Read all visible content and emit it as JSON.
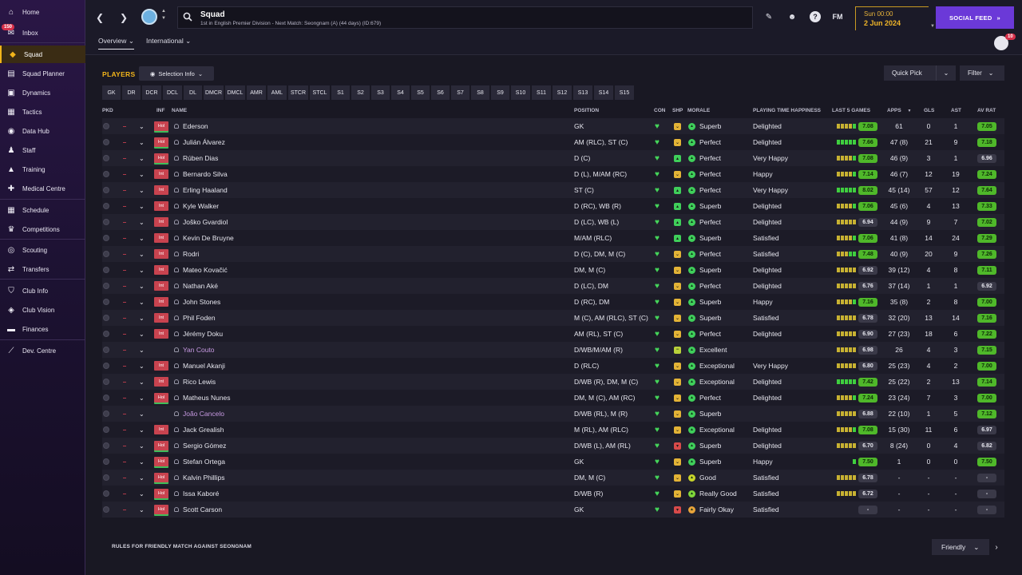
{
  "sidebar": {
    "inbox_badge": "150",
    "items": [
      {
        "label": "Home",
        "icon": "home-icon",
        "glyph": "⌂"
      },
      {
        "label": "Inbox",
        "icon": "mail-icon",
        "glyph": "✉"
      },
      {
        "label": "Squad",
        "icon": "shirt-icon",
        "glyph": "◆",
        "active": true
      },
      {
        "label": "Squad Planner",
        "icon": "planner-icon",
        "glyph": "▤"
      },
      {
        "label": "Dynamics",
        "icon": "dynamics-icon",
        "glyph": "▣"
      },
      {
        "label": "Tactics",
        "icon": "tactics-icon",
        "glyph": "▦"
      },
      {
        "label": "Data Hub",
        "icon": "data-hub-icon",
        "glyph": "◉"
      },
      {
        "label": "Staff",
        "icon": "staff-icon",
        "glyph": "♟"
      },
      {
        "label": "Training",
        "icon": "training-icon",
        "glyph": "▲"
      },
      {
        "label": "Medical Centre",
        "icon": "medical-icon",
        "glyph": "✚"
      },
      {
        "label": "Schedule",
        "icon": "calendar-icon",
        "glyph": "▦"
      },
      {
        "label": "Competitions",
        "icon": "trophy-icon",
        "glyph": "♛"
      },
      {
        "label": "Scouting",
        "icon": "binoculars-icon",
        "glyph": "◎"
      },
      {
        "label": "Transfers",
        "icon": "transfers-icon",
        "glyph": "⇄"
      },
      {
        "label": "Club Info",
        "icon": "shield-icon",
        "glyph": "⛉"
      },
      {
        "label": "Club Vision",
        "icon": "vision-icon",
        "glyph": "◈"
      },
      {
        "label": "Finances",
        "icon": "finances-icon",
        "glyph": "▬"
      },
      {
        "label": "Dev. Centre",
        "icon": "dev-centre-icon",
        "glyph": "⟋"
      }
    ]
  },
  "topbar": {
    "title": "Squad",
    "subtitle": "1st in English Premier Division - Next Match: Seongnam (A) (44 days) (ID:679)",
    "time": "Sun 00:00",
    "date": "2 Jun 2024",
    "social_feed": "SOCIAL FEED",
    "fm_label": "FM",
    "help_label": "?",
    "avatar_badge": "10",
    "tabs": [
      {
        "label": "Overview",
        "active": true
      },
      {
        "label": "International",
        "active": false
      }
    ]
  },
  "panel": {
    "heading": "PLAYERS",
    "selection_info": "Selection Info",
    "quick_pick": "Quick Pick",
    "filter": "Filter",
    "position_filters": [
      "GK",
      "DR",
      "DCR",
      "DCL",
      "DL",
      "DMCR",
      "DMCL",
      "AMR",
      "AML",
      "STCR",
      "STCL",
      "S1",
      "S2",
      "S3",
      "S4",
      "S5",
      "S6",
      "S7",
      "S8",
      "S9",
      "S10",
      "S11",
      "S12",
      "S13",
      "S14",
      "S15"
    ]
  },
  "table": {
    "headers": {
      "pkd": "PKD",
      "inf": "INF",
      "name": "NAME",
      "position": "POSITION",
      "con": "CON",
      "shp": "SHP",
      "morale": "MORALE",
      "happiness": "PLAYING TIME HAPPINESS",
      "last5": "LAST 5 GAMES",
      "apps": "APPS",
      "gls": "GLS",
      "ast": "AST",
      "avrat": "AV RAT"
    },
    "sort_indicator": "▼",
    "rows": [
      {
        "inf": "Hol",
        "name": "Ederson",
        "position": "GK",
        "shp": "ok",
        "morale": "Superb",
        "happiness": "Delighted",
        "form": [
          "y",
          "y",
          "y",
          "y",
          "g"
        ],
        "last5": "7.08",
        "apps": "61",
        "gls": "0",
        "ast": "1",
        "avrat": "7.05"
      },
      {
        "inf": "Hol",
        "name": "Julián Álvarez",
        "position": "AM (RLC), ST (C)",
        "shp": "ok",
        "morale": "Perfect",
        "happiness": "Delighted",
        "form": [
          "g",
          "g",
          "g",
          "g",
          "g"
        ],
        "last5": "7.66",
        "apps": "47 (8)",
        "gls": "21",
        "ast": "9",
        "avrat": "7.18"
      },
      {
        "inf": "Hol",
        "name": "Rúben Dias",
        "position": "D (C)",
        "shp": "good",
        "morale": "Perfect",
        "happiness": "Very Happy",
        "form": [
          "y",
          "y",
          "y",
          "y",
          "g"
        ],
        "last5": "7.08",
        "apps": "46 (9)",
        "gls": "3",
        "ast": "1",
        "avrat": "6.96"
      },
      {
        "inf": "Int",
        "name": "Bernardo Silva",
        "position": "D (L), M/AM (RC)",
        "shp": "ok",
        "morale": "Perfect",
        "happiness": "Happy",
        "form": [
          "y",
          "y",
          "y",
          "y",
          "g"
        ],
        "last5": "7.14",
        "apps": "46 (7)",
        "gls": "12",
        "ast": "19",
        "avrat": "7.24"
      },
      {
        "inf": "Int",
        "name": "Erling Haaland",
        "position": "ST (C)",
        "shp": "good",
        "morale": "Perfect",
        "happiness": "Very Happy",
        "form": [
          "g",
          "g",
          "g",
          "g",
          "g"
        ],
        "last5": "8.02",
        "apps": "45 (14)",
        "gls": "57",
        "ast": "12",
        "avrat": "7.64"
      },
      {
        "inf": "Int",
        "name": "Kyle Walker",
        "position": "D (RC), WB (R)",
        "shp": "good",
        "morale": "Superb",
        "happiness": "Delighted",
        "form": [
          "y",
          "y",
          "y",
          "y",
          "g"
        ],
        "last5": "7.06",
        "apps": "45 (6)",
        "gls": "4",
        "ast": "13",
        "avrat": "7.33"
      },
      {
        "inf": "Int",
        "name": "Joško Gvardiol",
        "position": "D (LC), WB (L)",
        "shp": "good",
        "morale": "Perfect",
        "happiness": "Delighted",
        "form": [
          "y",
          "y",
          "y",
          "y",
          "y"
        ],
        "last5": "6.94",
        "apps": "44 (9)",
        "gls": "9",
        "ast": "7",
        "avrat": "7.02"
      },
      {
        "inf": "Int",
        "name": "Kevin De Bruyne",
        "position": "M/AM (RLC)",
        "shp": "good",
        "morale": "Superb",
        "happiness": "Satisfied",
        "form": [
          "y",
          "y",
          "y",
          "y",
          "g"
        ],
        "last5": "7.06",
        "apps": "41 (8)",
        "gls": "14",
        "ast": "24",
        "avrat": "7.29"
      },
      {
        "inf": "Int",
        "name": "Rodri",
        "position": "D (C), DM, M (C)",
        "shp": "ok",
        "morale": "Perfect",
        "happiness": "Satisfied",
        "form": [
          "y",
          "y",
          "y",
          "g",
          "g"
        ],
        "last5": "7.48",
        "apps": "40 (9)",
        "gls": "20",
        "ast": "9",
        "avrat": "7.26"
      },
      {
        "inf": "Int",
        "name": "Mateo Kovačić",
        "position": "DM, M (C)",
        "shp": "ok",
        "morale": "Superb",
        "happiness": "Delighted",
        "form": [
          "y",
          "y",
          "y",
          "y",
          "y"
        ],
        "last5": "6.92",
        "apps": "39 (12)",
        "gls": "4",
        "ast": "8",
        "avrat": "7.11"
      },
      {
        "inf": "Int",
        "name": "Nathan Aké",
        "position": "D (LC), DM",
        "shp": "ok",
        "morale": "Perfect",
        "happiness": "Delighted",
        "form": [
          "y",
          "y",
          "y",
          "y",
          "y"
        ],
        "last5": "6.76",
        "apps": "37 (14)",
        "gls": "1",
        "ast": "1",
        "avrat": "6.92"
      },
      {
        "inf": "Int",
        "name": "John Stones",
        "position": "D (RC), DM",
        "shp": "ok",
        "morale": "Superb",
        "happiness": "Happy",
        "form": [
          "y",
          "y",
          "y",
          "y",
          "g"
        ],
        "last5": "7.16",
        "apps": "35 (8)",
        "gls": "2",
        "ast": "8",
        "avrat": "7.00"
      },
      {
        "inf": "Int",
        "name": "Phil Foden",
        "position": "M (C), AM (RLC), ST (C)",
        "shp": "ok",
        "morale": "Superb",
        "happiness": "Satisfied",
        "form": [
          "y",
          "y",
          "y",
          "y",
          "y"
        ],
        "last5": "6.78",
        "apps": "32 (20)",
        "gls": "13",
        "ast": "14",
        "avrat": "7.16"
      },
      {
        "inf": "Int",
        "name": "Jérémy Doku",
        "position": "AM (RL), ST (C)",
        "shp": "ok",
        "morale": "Perfect",
        "happiness": "Delighted",
        "form": [
          "y",
          "y",
          "y",
          "y",
          "y"
        ],
        "last5": "6.90",
        "apps": "27 (23)",
        "gls": "18",
        "ast": "6",
        "avrat": "7.22"
      },
      {
        "inf": "",
        "name": "Yan Couto",
        "loan": true,
        "position": "D/WB/M/AM (R)",
        "shp": "mid",
        "morale": "Excellent",
        "happiness": "",
        "form": [
          "y",
          "y",
          "y",
          "y",
          "y"
        ],
        "last5": "6.98",
        "apps": "26",
        "gls": "4",
        "ast": "3",
        "avrat": "7.15"
      },
      {
        "inf": "Int",
        "name": "Manuel Akanji",
        "position": "D (RLC)",
        "shp": "ok",
        "morale": "Exceptional",
        "happiness": "Very Happy",
        "form": [
          "y",
          "y",
          "y",
          "y",
          "y"
        ],
        "last5": "6.80",
        "apps": "25 (23)",
        "gls": "4",
        "ast": "2",
        "avrat": "7.00"
      },
      {
        "inf": "Int",
        "name": "Rico Lewis",
        "position": "D/WB (R), DM, M (C)",
        "shp": "ok",
        "morale": "Exceptional",
        "happiness": "Delighted",
        "form": [
          "g",
          "g",
          "g",
          "g",
          "g"
        ],
        "last5": "7.42",
        "apps": "25 (22)",
        "gls": "2",
        "ast": "13",
        "avrat": "7.14"
      },
      {
        "inf": "Hol",
        "name": "Matheus Nunes",
        "position": "DM, M (C), AM (RC)",
        "shp": "ok",
        "morale": "Perfect",
        "happiness": "Delighted",
        "form": [
          "y",
          "y",
          "y",
          "y",
          "g"
        ],
        "last5": "7.24",
        "apps": "23 (24)",
        "gls": "7",
        "ast": "3",
        "avrat": "7.00"
      },
      {
        "inf": "",
        "name": "João Cancelo",
        "loan": true,
        "position": "D/WB (RL), M (R)",
        "shp": "ok",
        "morale": "Superb",
        "happiness": "",
        "form": [
          "y",
          "y",
          "y",
          "y",
          "y"
        ],
        "last5": "6.88",
        "apps": "22 (10)",
        "gls": "1",
        "ast": "5",
        "avrat": "7.12"
      },
      {
        "inf": "Int",
        "name": "Jack Grealish",
        "position": "M (RL), AM (RLC)",
        "shp": "ok",
        "morale": "Exceptional",
        "happiness": "Delighted",
        "form": [
          "y",
          "y",
          "y",
          "y",
          "g"
        ],
        "last5": "7.08",
        "apps": "15 (30)",
        "gls": "11",
        "ast": "6",
        "avrat": "6.97"
      },
      {
        "inf": "Hol",
        "name": "Sergio Gómez",
        "position": "D/WB (L), AM (RL)",
        "shp": "bad",
        "morale": "Superb",
        "happiness": "Delighted",
        "form": [
          "y",
          "y",
          "y",
          "y",
          "y"
        ],
        "last5": "6.70",
        "apps": "8 (24)",
        "gls": "0",
        "ast": "4",
        "avrat": "6.82"
      },
      {
        "inf": "Hol",
        "name": "Stefan Ortega",
        "position": "GK",
        "shp": "ok",
        "morale": "Superb",
        "happiness": "Happy",
        "form": [
          "g"
        ],
        "last5": "7.50",
        "apps": "1",
        "gls": "0",
        "ast": "0",
        "avrat": "7.50"
      },
      {
        "inf": "Hol",
        "name": "Kalvin Phillips",
        "position": "DM, M (C)",
        "shp": "ok",
        "morale": "Good",
        "happiness": "Satisfied",
        "form": [
          "y",
          "y",
          "y",
          "y",
          "y"
        ],
        "last5": "6.78",
        "apps": "-",
        "gls": "-",
        "ast": "-",
        "avrat": "-"
      },
      {
        "inf": "Hol",
        "name": "Issa Kaboré",
        "position": "D/WB (R)",
        "shp": "ok",
        "morale": "Really Good",
        "happiness": "Satisfied",
        "form": [
          "y",
          "y",
          "y",
          "y",
          "y"
        ],
        "last5": "6.72",
        "apps": "-",
        "gls": "-",
        "ast": "-",
        "avrat": "-"
      },
      {
        "inf": "Hol",
        "name": "Scott Carson",
        "position": "GK",
        "shp": "bad",
        "morale": "Fairly Okay",
        "happiness": "Satisfied",
        "form": [],
        "last5": "-",
        "apps": "-",
        "gls": "-",
        "ast": "-",
        "avrat": "-"
      }
    ]
  },
  "footer": {
    "rules_label": "RULES FOR FRIENDLY MATCH AGAINST SEONGNAM",
    "friendly_select": "Friendly"
  },
  "colors": {
    "accent_gold": "#f2b51b",
    "social_purple": "#6b39d8",
    "form_green": "#3fcf3f",
    "form_yellow": "#c8b232",
    "rating_green": "#4fb82a"
  }
}
